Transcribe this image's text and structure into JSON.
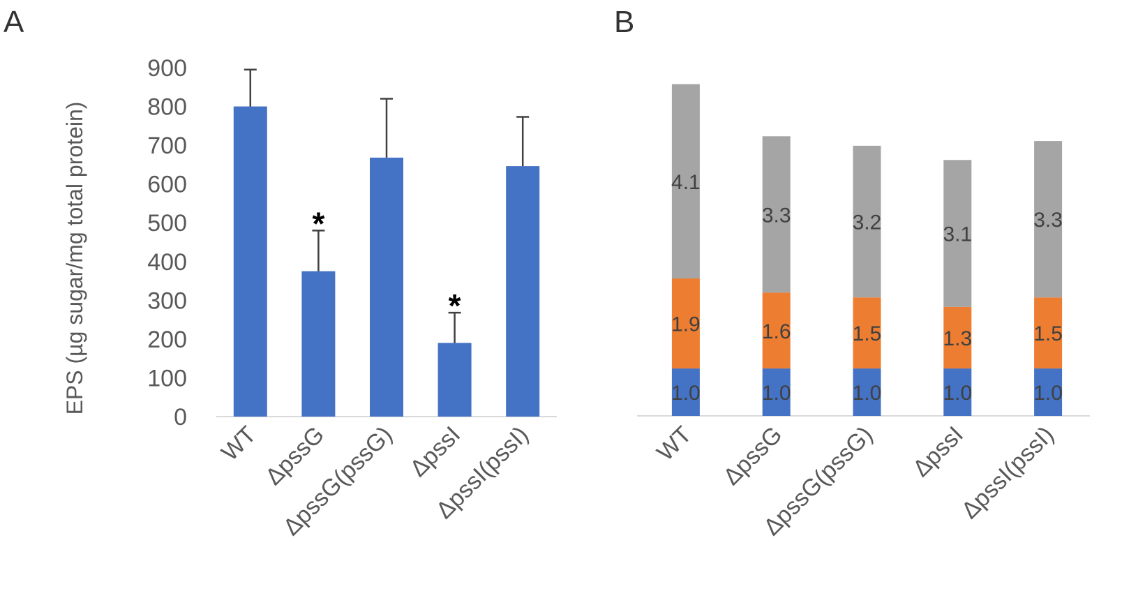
{
  "panel_labels": [
    "A",
    "B"
  ],
  "colors": {
    "bar": "#4472C4",
    "orange": "#ED7D31",
    "gray": "#A5A5A5",
    "axis": "#D9D9D9",
    "errorbar": "#404040"
  },
  "chart_data": [
    {
      "type": "bar",
      "panel": "A",
      "categories": [
        "WT",
        "ΔpssG",
        "ΔpssG(pssG)",
        "ΔpssI",
        "ΔpssI(pssI)"
      ],
      "values": [
        800,
        375,
        668,
        190,
        646
      ],
      "error_upper": [
        895,
        480,
        820,
        268,
        773
      ],
      "significance": [
        "",
        "*",
        "",
        "*",
        ""
      ],
      "ylabel": "EPS (µg sugar/mg total protein)",
      "ylim": [
        0,
        900
      ],
      "yticks": [
        0,
        100,
        200,
        300,
        400,
        500,
        600,
        700,
        800,
        900
      ]
    },
    {
      "type": "bar",
      "stacked": true,
      "panel": "B",
      "categories": [
        "WT",
        "ΔpssG",
        "ΔpssG(pssG)",
        "ΔpssI",
        "ΔpssI(pssI)"
      ],
      "series": [
        {
          "name": "blue",
          "values": [
            1.0,
            1.0,
            1.0,
            1.0,
            1.0
          ],
          "labels": [
            "1.0",
            "1.0",
            "1.0",
            "1.0",
            "1.0"
          ]
        },
        {
          "name": "orange",
          "values": [
            1.9,
            1.6,
            1.5,
            1.3,
            1.5
          ],
          "labels": [
            "1.9",
            "1.6",
            "1.5",
            "1.3",
            "1.5"
          ]
        },
        {
          "name": "gray",
          "values": [
            4.1,
            3.3,
            3.2,
            3.1,
            3.3
          ],
          "labels": [
            "4.1",
            "3.3",
            "3.2",
            "3.1",
            "3.3"
          ]
        }
      ],
      "ylim": [
        0,
        7.2
      ]
    }
  ]
}
